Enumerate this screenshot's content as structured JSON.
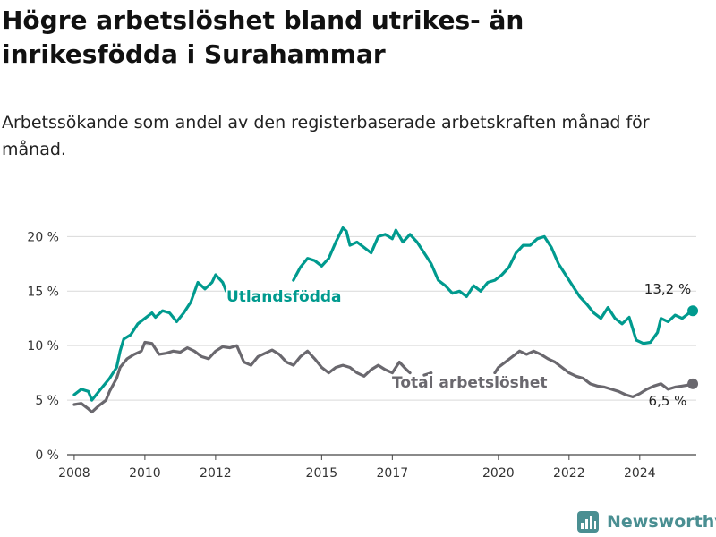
{
  "title": "Högre arbetslöshet bland utrikes- än inrikesfödda i Surahammar",
  "subtitle": "Arbetssökande som andel av den registerbaserade arbetskraften månad för månad.",
  "brand": {
    "name": "Newsworthy",
    "icon": "newsworthy-logo-icon"
  },
  "colors": {
    "utland": "#009a8e",
    "total": "#6a686e",
    "grid": "#d9d9d9",
    "axis": "#333333"
  },
  "chart_data": {
    "type": "line",
    "xlim": [
      2007.8,
      2025.6
    ],
    "ylim": [
      0,
      22
    ],
    "y_ticks": [
      0,
      5,
      10,
      15,
      20
    ],
    "y_tick_labels": [
      "0 %",
      "5 %",
      "10 %",
      "15 %",
      "20 %"
    ],
    "x_ticks": [
      2008,
      2010,
      2012,
      2015,
      2017,
      2020,
      2022,
      2024
    ],
    "x_tick_labels": [
      "2008",
      "2010",
      "2012",
      "2015",
      "2017",
      "2020",
      "2022",
      "2024"
    ],
    "series": [
      {
        "name": "Utlandsfödda",
        "end_label": "13,2 %",
        "end_value": 13.2,
        "segments": [
          [
            [
              2008.0,
              5.5
            ],
            [
              2008.2,
              6.0
            ],
            [
              2008.4,
              5.8
            ],
            [
              2008.5,
              5.0
            ],
            [
              2008.7,
              5.8
            ],
            [
              2008.9,
              6.6
            ],
            [
              2009.0,
              7.0
            ],
            [
              2009.2,
              8.0
            ],
            [
              2009.3,
              9.5
            ],
            [
              2009.4,
              10.6
            ],
            [
              2009.6,
              11.0
            ],
            [
              2009.8,
              12.0
            ],
            [
              2010.0,
              12.5
            ],
            [
              2010.2,
              13.0
            ],
            [
              2010.3,
              12.6
            ],
            [
              2010.5,
              13.2
            ],
            [
              2010.7,
              13.0
            ],
            [
              2010.9,
              12.2
            ],
            [
              2011.1,
              13.0
            ],
            [
              2011.3,
              14.0
            ],
            [
              2011.5,
              15.8
            ],
            [
              2011.7,
              15.2
            ],
            [
              2011.9,
              15.8
            ],
            [
              2012.0,
              16.5
            ],
            [
              2012.2,
              15.8
            ],
            [
              2012.3,
              15.0
            ]
          ],
          [
            [
              2014.2,
              16.0
            ],
            [
              2014.4,
              17.2
            ],
            [
              2014.6,
              18.0
            ],
            [
              2014.8,
              17.8
            ],
            [
              2015.0,
              17.3
            ],
            [
              2015.2,
              18.0
            ],
            [
              2015.4,
              19.5
            ],
            [
              2015.6,
              20.8
            ],
            [
              2015.7,
              20.5
            ],
            [
              2015.8,
              19.2
            ],
            [
              2016.0,
              19.5
            ],
            [
              2016.2,
              19.0
            ],
            [
              2016.4,
              18.5
            ],
            [
              2016.6,
              20.0
            ],
            [
              2016.8,
              20.2
            ],
            [
              2017.0,
              19.8
            ],
            [
              2017.1,
              20.6
            ],
            [
              2017.3,
              19.5
            ],
            [
              2017.5,
              20.2
            ],
            [
              2017.7,
              19.5
            ],
            [
              2017.9,
              18.5
            ],
            [
              2018.1,
              17.5
            ],
            [
              2018.3,
              16.0
            ],
            [
              2018.5,
              15.5
            ],
            [
              2018.7,
              14.8
            ],
            [
              2018.9,
              15.0
            ],
            [
              2019.1,
              14.5
            ],
            [
              2019.3,
              15.5
            ],
            [
              2019.5,
              15.0
            ],
            [
              2019.7,
              15.8
            ],
            [
              2019.9,
              16.0
            ],
            [
              2020.1,
              16.5
            ],
            [
              2020.3,
              17.2
            ],
            [
              2020.5,
              18.5
            ],
            [
              2020.7,
              19.2
            ],
            [
              2020.9,
              19.2
            ],
            [
              2021.1,
              19.8
            ],
            [
              2021.3,
              20.0
            ],
            [
              2021.5,
              19.0
            ],
            [
              2021.7,
              17.5
            ],
            [
              2021.9,
              16.5
            ],
            [
              2022.1,
              15.5
            ],
            [
              2022.3,
              14.5
            ],
            [
              2022.5,
              13.8
            ],
            [
              2022.7,
              13.0
            ],
            [
              2022.9,
              12.5
            ],
            [
              2023.1,
              13.5
            ],
            [
              2023.3,
              12.5
            ],
            [
              2023.5,
              12.0
            ],
            [
              2023.7,
              12.6
            ],
            [
              2023.9,
              10.5
            ],
            [
              2024.1,
              10.2
            ],
            [
              2024.3,
              10.3
            ],
            [
              2024.5,
              11.2
            ],
            [
              2024.6,
              12.5
            ],
            [
              2024.8,
              12.2
            ],
            [
              2025.0,
              12.8
            ],
            [
              2025.2,
              12.5
            ],
            [
              2025.4,
              13.0
            ],
            [
              2025.5,
              13.2
            ]
          ]
        ]
      },
      {
        "name": "Total arbetslöshet",
        "end_label": "6,5 %",
        "end_value": 6.5,
        "segments": [
          [
            [
              2008.0,
              4.6
            ],
            [
              2008.2,
              4.7
            ],
            [
              2008.4,
              4.2
            ],
            [
              2008.5,
              3.9
            ],
            [
              2008.7,
              4.5
            ],
            [
              2008.9,
              5.0
            ],
            [
              2009.0,
              5.8
            ],
            [
              2009.2,
              7.0
            ],
            [
              2009.3,
              8.0
            ],
            [
              2009.5,
              8.8
            ],
            [
              2009.7,
              9.2
            ],
            [
              2009.9,
              9.5
            ],
            [
              2010.0,
              10.3
            ],
            [
              2010.2,
              10.2
            ],
            [
              2010.4,
              9.2
            ],
            [
              2010.6,
              9.3
            ],
            [
              2010.8,
              9.5
            ],
            [
              2011.0,
              9.4
            ],
            [
              2011.2,
              9.8
            ],
            [
              2011.4,
              9.5
            ],
            [
              2011.6,
              9.0
            ],
            [
              2011.8,
              8.8
            ],
            [
              2012.0,
              9.5
            ],
            [
              2012.2,
              9.9
            ],
            [
              2012.4,
              9.8
            ],
            [
              2012.6,
              10.0
            ],
            [
              2012.8,
              8.5
            ],
            [
              2013.0,
              8.2
            ],
            [
              2013.2,
              9.0
            ],
            [
              2013.4,
              9.3
            ],
            [
              2013.6,
              9.6
            ],
            [
              2013.8,
              9.2
            ],
            [
              2014.0,
              8.5
            ],
            [
              2014.2,
              8.2
            ],
            [
              2014.4,
              9.0
            ],
            [
              2014.6,
              9.5
            ],
            [
              2014.8,
              8.8
            ],
            [
              2015.0,
              8.0
            ],
            [
              2015.2,
              7.5
            ],
            [
              2015.4,
              8.0
            ],
            [
              2015.6,
              8.2
            ],
            [
              2015.8,
              8.0
            ],
            [
              2016.0,
              7.5
            ],
            [
              2016.2,
              7.2
            ],
            [
              2016.4,
              7.8
            ],
            [
              2016.6,
              8.2
            ],
            [
              2016.8,
              7.8
            ],
            [
              2017.0,
              7.5
            ],
            [
              2017.2,
              8.5
            ],
            [
              2017.4,
              7.8
            ],
            [
              2017.5,
              7.5
            ]
          ],
          [
            [
              2017.9,
              7.3
            ],
            [
              2018.1,
              7.5
            ]
          ],
          [
            [
              2019.9,
              7.5
            ],
            [
              2020.0,
              8.0
            ],
            [
              2020.2,
              8.5
            ],
            [
              2020.4,
              9.0
            ],
            [
              2020.6,
              9.5
            ],
            [
              2020.8,
              9.2
            ],
            [
              2021.0,
              9.5
            ],
            [
              2021.2,
              9.2
            ],
            [
              2021.4,
              8.8
            ],
            [
              2021.6,
              8.5
            ],
            [
              2021.8,
              8.0
            ],
            [
              2022.0,
              7.5
            ],
            [
              2022.2,
              7.2
            ],
            [
              2022.4,
              7.0
            ],
            [
              2022.6,
              6.5
            ],
            [
              2022.8,
              6.3
            ],
            [
              2023.0,
              6.2
            ],
            [
              2023.2,
              6.0
            ],
            [
              2023.4,
              5.8
            ],
            [
              2023.6,
              5.5
            ],
            [
              2023.8,
              5.3
            ],
            [
              2024.0,
              5.6
            ],
            [
              2024.2,
              6.0
            ],
            [
              2024.4,
              6.3
            ],
            [
              2024.6,
              6.5
            ],
            [
              2024.8,
              6.0
            ],
            [
              2025.0,
              6.2
            ],
            [
              2025.2,
              6.3
            ],
            [
              2025.4,
              6.4
            ],
            [
              2025.5,
              6.5
            ]
          ]
        ]
      }
    ]
  }
}
